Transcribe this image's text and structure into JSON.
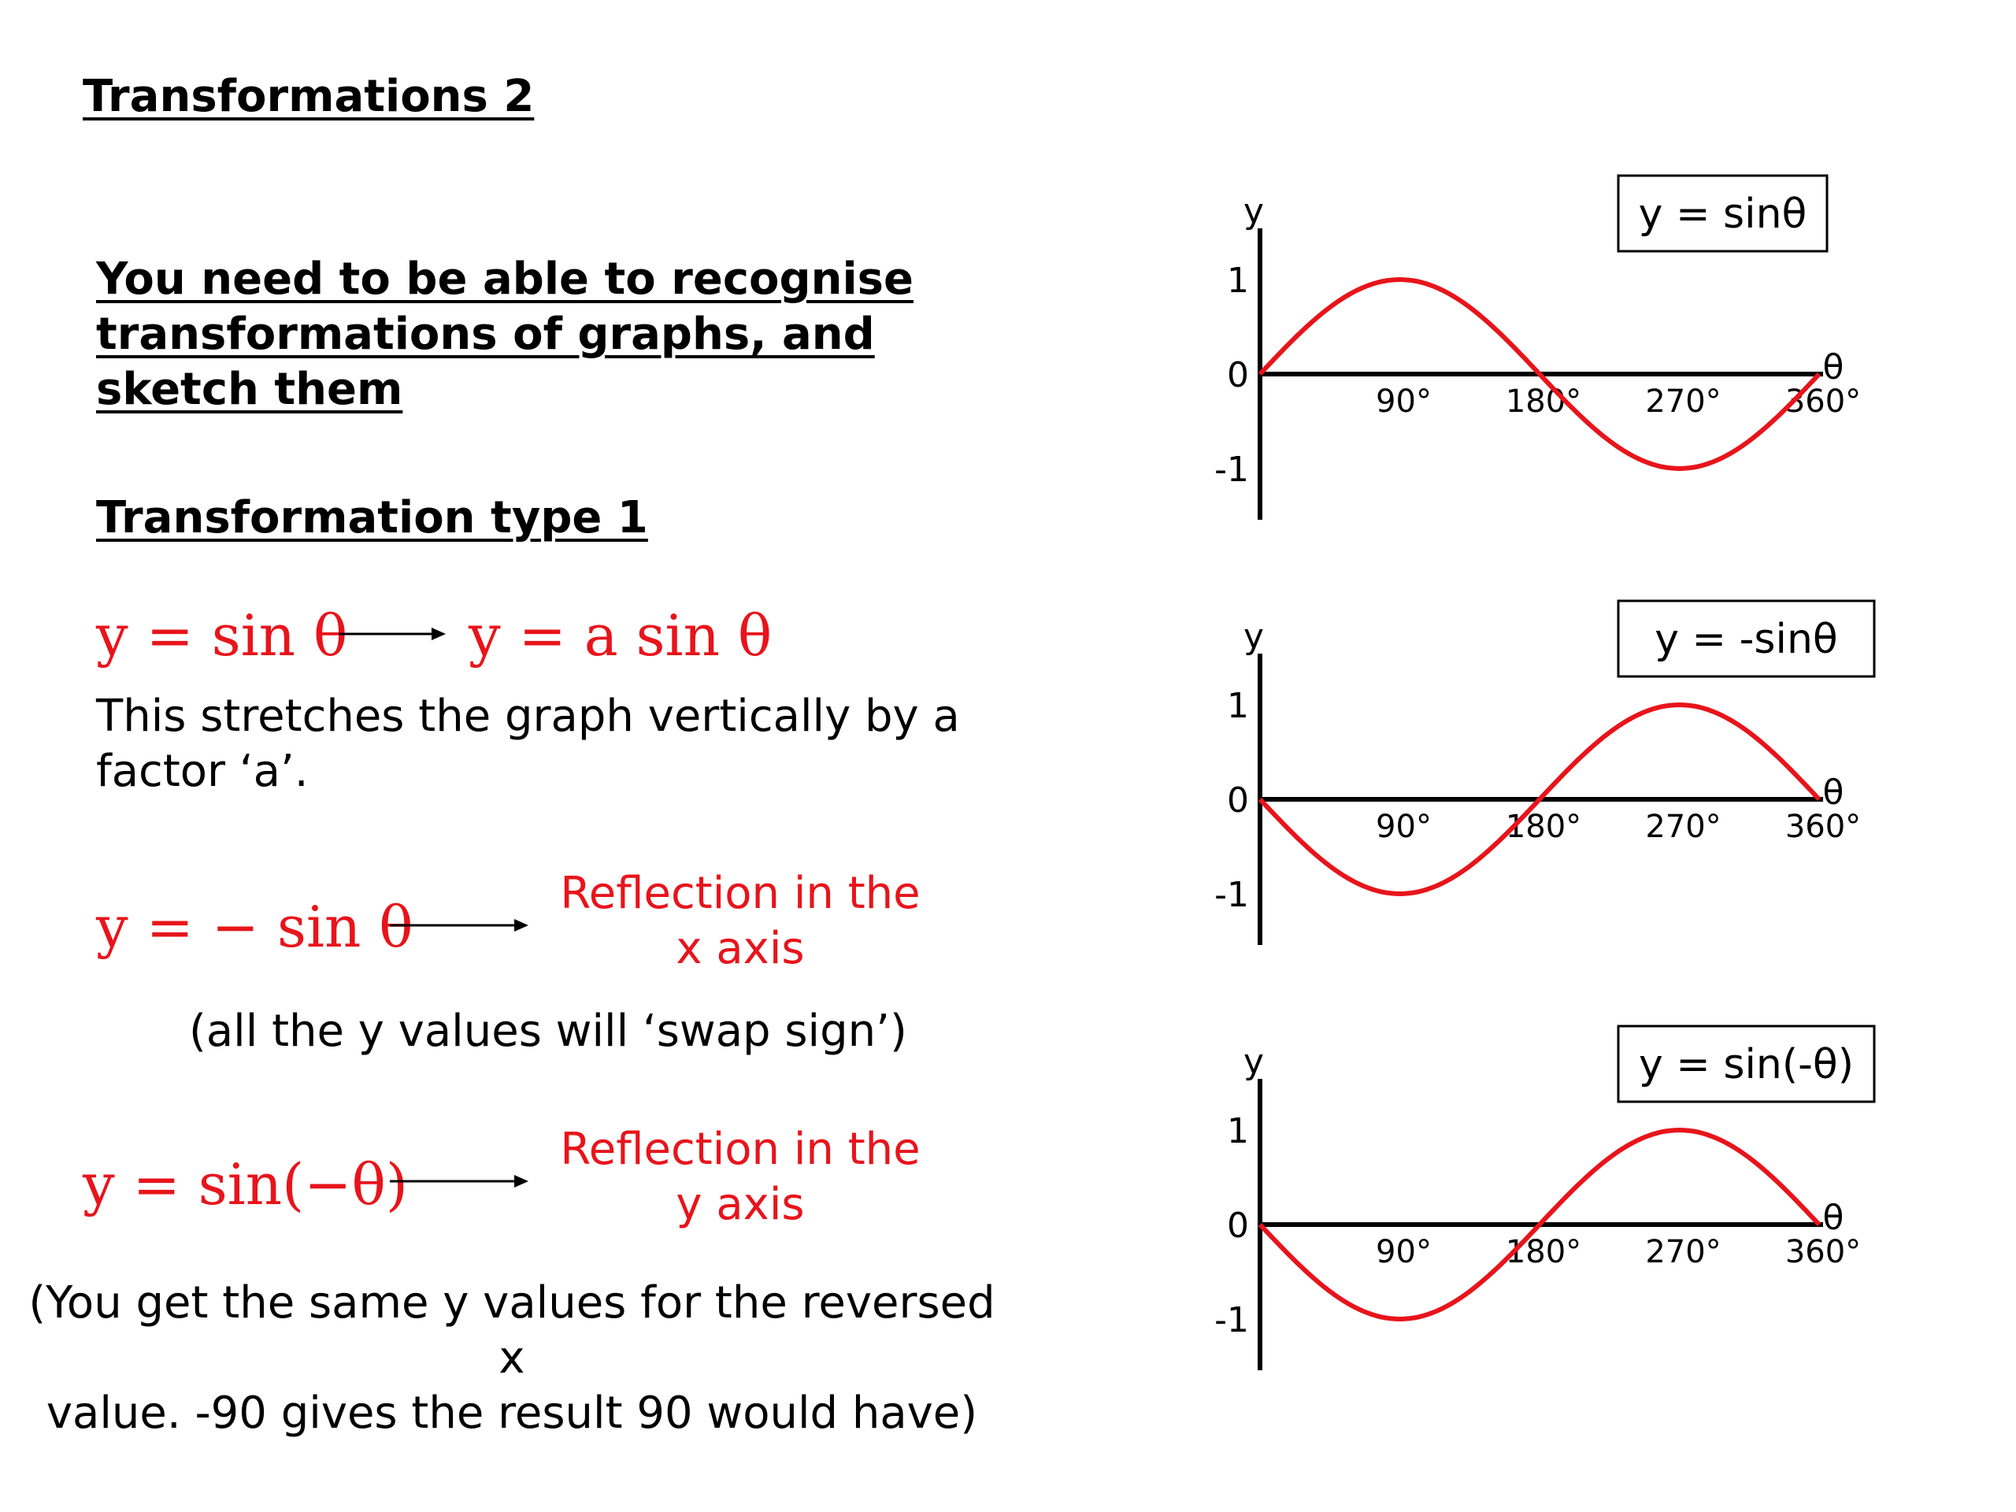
{
  "title": "Transformations 2",
  "intro": "You need to be able to recognise transformations of graphs, and sketch them",
  "type_heading": "Transformation type 1",
  "rule1": {
    "lhs": "y = sin θ",
    "rhs": "y = a sin θ",
    "description": "This stretches the graph vertically by a factor ‘a’."
  },
  "rule2": {
    "lhs": "y = − sin θ",
    "result_line1": "Reflection in the",
    "result_line2": "x axis",
    "note": "(all the y values will ‘swap sign’)"
  },
  "rule3": {
    "lhs": "y = sin(−θ)",
    "result_line1": "Reflection in the",
    "result_line2": "y axis",
    "note_line1": "(You get the same y values for the reversed x",
    "note_line2": "value. -90 gives the result 90 would have)"
  },
  "colors": {
    "curve": "#e8141b",
    "text_red": "#e8141b",
    "axis": "#000000"
  },
  "chart_data": [
    {
      "type": "line",
      "title": "y = sinθ",
      "xlabel": "θ",
      "ylabel": "y",
      "xticks": [
        "90°",
        "180°",
        "270°",
        "360°"
      ],
      "yticks": [
        "1",
        "0",
        "-1"
      ],
      "xlim": [
        0,
        360
      ],
      "ylim": [
        -1,
        1
      ],
      "x": [
        0,
        45,
        90,
        135,
        180,
        225,
        270,
        315,
        360
      ],
      "series": [
        {
          "values": [
            0,
            0.71,
            1,
            0.71,
            0,
            -0.71,
            -1,
            -0.71,
            0
          ]
        }
      ]
    },
    {
      "type": "line",
      "title": "y = -sinθ",
      "xlabel": "θ",
      "ylabel": "y",
      "xticks": [
        "90°",
        "180°",
        "270°",
        "360°"
      ],
      "yticks": [
        "1",
        "0",
        "-1"
      ],
      "xlim": [
        0,
        360
      ],
      "ylim": [
        -1,
        1
      ],
      "x": [
        0,
        45,
        90,
        135,
        180,
        225,
        270,
        315,
        360
      ],
      "series": [
        {
          "values": [
            0,
            -0.71,
            -1,
            -0.71,
            0,
            0.71,
            1,
            0.71,
            0
          ]
        }
      ]
    },
    {
      "type": "line",
      "title": "y = sin(-θ)",
      "xlabel": "θ",
      "ylabel": "y",
      "xticks": [
        "90°",
        "180°",
        "270°",
        "360°"
      ],
      "yticks": [
        "1",
        "0",
        "-1"
      ],
      "xlim": [
        0,
        360
      ],
      "ylim": [
        -1,
        1
      ],
      "x": [
        0,
        45,
        90,
        135,
        180,
        225,
        270,
        315,
        360
      ],
      "series": [
        {
          "values": [
            0,
            -0.71,
            -1,
            -0.71,
            0,
            0.71,
            1,
            0.71,
            0
          ]
        }
      ]
    }
  ]
}
